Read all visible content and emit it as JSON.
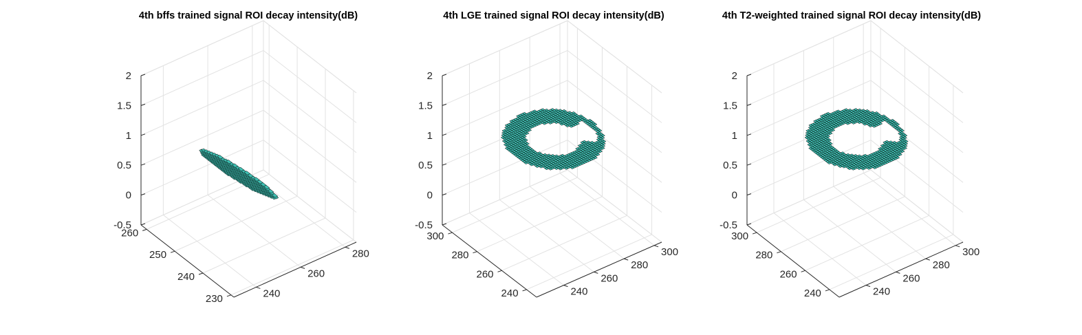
{
  "chart_data": [
    {
      "type": "surface3d",
      "title": "4th bffs trained signal ROI decay intensity(dB)",
      "xlabel": "",
      "ylabel": "",
      "zlabel": "",
      "x_ticks": [
        "240",
        "260",
        "280"
      ],
      "y_ticks": [
        "230",
        "240",
        "250",
        "260"
      ],
      "z_ticks": [
        "-0.5",
        "0",
        "0.5",
        "1",
        "1.5",
        "2"
      ],
      "xlim": [
        230,
        285
      ],
      "ylim": [
        229,
        262
      ],
      "zlim": [
        -0.5,
        2
      ],
      "grid": true,
      "surface_color": "#3fbfb2",
      "edge_color": "#000000",
      "surface": {
        "shape": "patch",
        "center_x": 255,
        "center_y": 247,
        "semi_axis_x": 11,
        "semi_axis_y": 4,
        "z_values": [
          0.8,
          0.1
        ]
      }
    },
    {
      "type": "surface3d",
      "title": "4th LGE trained signal ROI decay intensity(dB)",
      "xlabel": "",
      "ylabel": "",
      "zlabel": "",
      "x_ticks": [
        "240",
        "260",
        "280",
        "300"
      ],
      "y_ticks": [
        "240",
        "260",
        "280",
        "300"
      ],
      "z_ticks": [
        "-0.5",
        "0",
        "0.5",
        "1",
        "1.5",
        "2"
      ],
      "xlim": [
        222,
        305
      ],
      "ylim": [
        232,
        308
      ],
      "zlim": [
        -0.5,
        2
      ],
      "grid": true,
      "surface_color": "#3fbfb2",
      "edge_color": "#000000",
      "surface": {
        "shape": "ring",
        "center_x": 266,
        "center_y": 272,
        "outer_radius": 26,
        "inner_radius": 14,
        "z_value": 1,
        "gap_start_deg": -40,
        "gap_end_deg": 10
      }
    },
    {
      "type": "surface3d",
      "title": "4th T2-weighted trained signal ROI decay intensity(dB)",
      "xlabel": "",
      "ylabel": "",
      "zlabel": "",
      "x_ticks": [
        "240",
        "260",
        "280",
        "300"
      ],
      "y_ticks": [
        "240",
        "260",
        "280",
        "300"
      ],
      "z_ticks": [
        "-0.5",
        "0",
        "0.5",
        "1",
        "1.5",
        "2"
      ],
      "xlim": [
        222,
        305
      ],
      "ylim": [
        232,
        308
      ],
      "zlim": [
        -0.5,
        2
      ],
      "grid": true,
      "surface_color": "#3fbfb2",
      "edge_color": "#000000",
      "surface": {
        "shape": "ring",
        "center_x": 266,
        "center_y": 272,
        "outer_radius": 26,
        "inner_radius": 14,
        "z_value": 1,
        "gap_start_deg": -40,
        "gap_end_deg": 10
      }
    }
  ]
}
